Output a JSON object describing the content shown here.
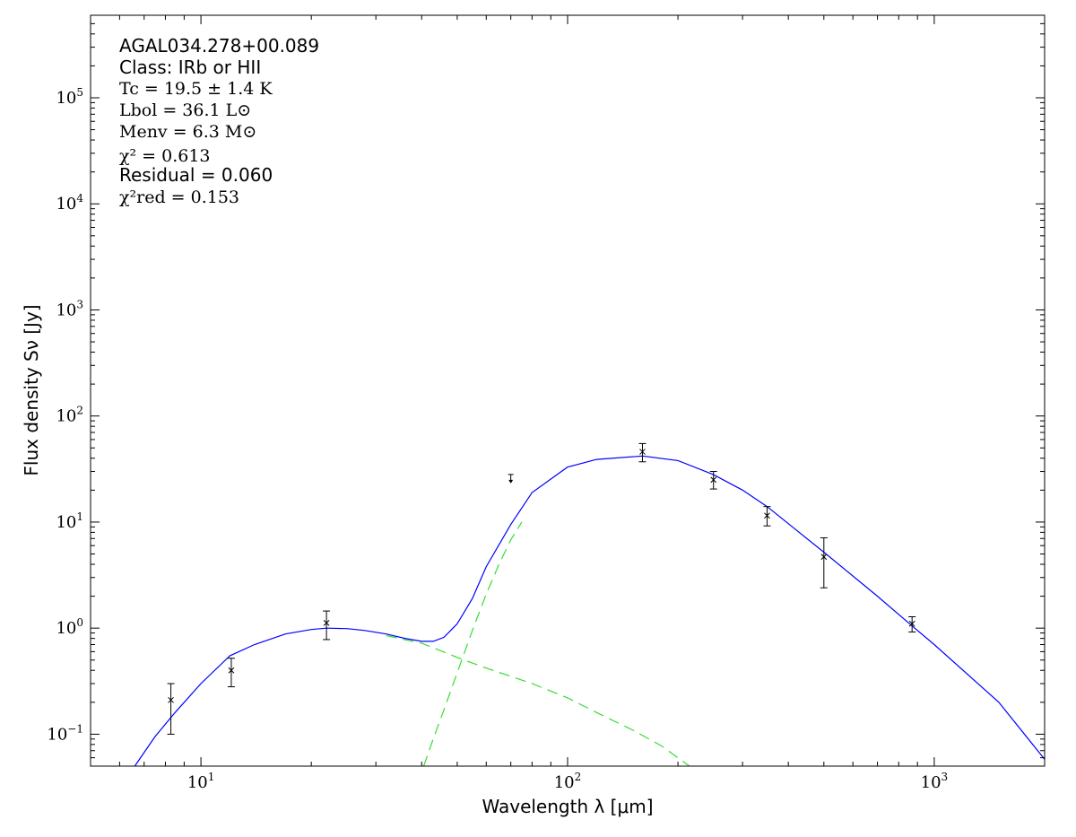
{
  "chart_data": {
    "type": "scatter",
    "xlabel": "Wavelength λ [μm]",
    "ylabel": "Flux density Sν [Jy]",
    "xscale": "log",
    "yscale": "log",
    "xlim": [
      5,
      2000
    ],
    "ylim": [
      0.05,
      600000
    ],
    "x_ticks": [
      {
        "value": 10,
        "base": "10",
        "exp": "1"
      },
      {
        "value": 100,
        "base": "10",
        "exp": "2"
      },
      {
        "value": 1000,
        "base": "10",
        "exp": "3"
      }
    ],
    "y_ticks": [
      {
        "value": 0.1,
        "base": "10",
        "exp": "−1"
      },
      {
        "value": 1,
        "base": "10",
        "exp": "0"
      },
      {
        "value": 10,
        "base": "10",
        "exp": "1"
      },
      {
        "value": 100,
        "base": "10",
        "exp": "2"
      },
      {
        "value": 1000,
        "base": "10",
        "exp": "3"
      },
      {
        "value": 10000,
        "base": "10",
        "exp": "4"
      },
      {
        "value": 100000,
        "base": "10",
        "exp": "5"
      }
    ],
    "grid": false,
    "annotations": {
      "source": "AGAL034.278+00.089",
      "class_label": "Class: IRb or HII",
      "tc": "Tc = 19.5 ± 1.4 K",
      "lbol": "Lbol = 36.1 L⊙",
      "menv": "Menv = 6.3 M⊙",
      "chi2": "χ² = 0.613",
      "residual": "Residual = 0.060",
      "chi2_red": "χ²red = 0.153"
    },
    "points": [
      {
        "x": 8.28,
        "y": 0.21,
        "ylo": 0.1,
        "yhi": 0.3
      },
      {
        "x": 12.1,
        "y": 0.4,
        "ylo": 0.28,
        "yhi": 0.52
      },
      {
        "x": 22.0,
        "y": 1.12,
        "ylo": 0.78,
        "yhi": 1.45
      },
      {
        "x": 160,
        "y": 46,
        "ylo": 37,
        "yhi": 55
      },
      {
        "x": 250,
        "y": 25,
        "ylo": 20.5,
        "yhi": 30
      },
      {
        "x": 350,
        "y": 11.5,
        "ylo": 9.2,
        "yhi": 14
      },
      {
        "x": 500,
        "y": 4.7,
        "ylo": 2.4,
        "yhi": 7.1
      },
      {
        "x": 870,
        "y": 1.1,
        "ylo": 0.92,
        "yhi": 1.28
      }
    ],
    "upper_limits": [
      {
        "x": 70,
        "y": 26
      }
    ],
    "series": [
      {
        "role": "total",
        "color": "#0000ff",
        "style": "solid",
        "x": [
          6.6,
          7.5,
          8.5,
          10,
          12,
          14,
          17,
          20,
          22,
          25,
          28,
          32,
          36,
          40,
          43,
          46,
          50,
          55,
          60,
          70,
          80,
          100,
          120,
          160,
          200,
          250,
          300,
          350,
          500,
          700,
          870,
          1000,
          1500,
          2000
        ],
        "y": [
          0.05,
          0.095,
          0.16,
          0.3,
          0.55,
          0.7,
          0.88,
          0.97,
          1.0,
          0.99,
          0.95,
          0.88,
          0.8,
          0.75,
          0.75,
          0.82,
          1.1,
          1.9,
          3.8,
          9.5,
          19,
          33,
          39,
          42,
          38,
          28,
          20,
          14,
          5.2,
          2.0,
          1.05,
          0.7,
          0.2,
          0.058
        ]
      },
      {
        "role": "warm-component",
        "color": "#33dd33",
        "style": "dashed",
        "x": [
          32,
          40,
          50,
          60,
          80,
          100,
          120,
          150,
          180,
          215
        ],
        "y": [
          0.85,
          0.72,
          0.53,
          0.42,
          0.3,
          0.22,
          0.16,
          0.11,
          0.078,
          0.05
        ]
      },
      {
        "role": "cold-component",
        "color": "#33dd33",
        "style": "dashed",
        "x": [
          40.5,
          43,
          46,
          50,
          55,
          60,
          65,
          70,
          75
        ],
        "y": [
          0.05,
          0.09,
          0.17,
          0.38,
          0.95,
          2.1,
          4.0,
          6.8,
          10
        ]
      }
    ]
  }
}
